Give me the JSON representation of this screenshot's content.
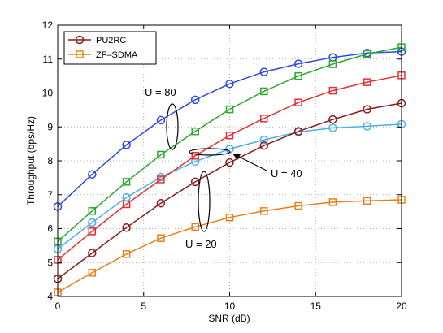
{
  "chart_data": {
    "type": "line",
    "xlabel": "SNR (dB)",
    "ylabel": "Throughput (bps/Hz)",
    "xlim": [
      0,
      20
    ],
    "ylim": [
      4,
      12
    ],
    "xticks": [
      0,
      5,
      10,
      15,
      20
    ],
    "yticks": [
      4,
      5,
      6,
      7,
      8,
      9,
      10,
      11,
      12
    ],
    "grid": "dotted",
    "legend_position": "top-left",
    "legend": [
      {
        "label": "PU2RC",
        "marker": "circle",
        "color": "#8B1A1A"
      },
      {
        "label": "ZF–SDMA",
        "marker": "square",
        "color": "#E8801A"
      }
    ],
    "x": [
      0,
      2,
      4,
      6,
      8,
      10,
      12,
      14,
      16,
      18,
      20
    ],
    "series": [
      {
        "group": "U = 80",
        "marker": "circle",
        "color": "#2B4BE0",
        "values": [
          6.65,
          7.6,
          8.47,
          9.2,
          9.8,
          10.27,
          10.62,
          10.86,
          11.05,
          11.18,
          11.22
        ]
      },
      {
        "group": "U = 80",
        "marker": "square",
        "color": "#2DA82D",
        "values": [
          5.62,
          6.52,
          7.38,
          8.18,
          8.87,
          9.52,
          10.05,
          10.5,
          10.85,
          11.15,
          11.35
        ]
      },
      {
        "group": "U = 40",
        "marker": "circle",
        "color": "#4AB0E8",
        "values": [
          5.4,
          6.18,
          6.92,
          7.52,
          7.98,
          8.35,
          8.62,
          8.85,
          8.97,
          9.02,
          9.08
        ]
      },
      {
        "group": "U = 40",
        "marker": "square",
        "color": "#E23232",
        "values": [
          5.08,
          5.92,
          6.72,
          7.45,
          8.15,
          8.75,
          9.25,
          9.72,
          10.07,
          10.32,
          10.52
        ]
      },
      {
        "group": "U = 20",
        "marker": "circle",
        "color": "#8B1A1A",
        "values": [
          4.52,
          5.28,
          6.03,
          6.75,
          7.38,
          7.95,
          8.45,
          8.87,
          9.22,
          9.52,
          9.7
        ]
      },
      {
        "group": "U = 20",
        "marker": "square",
        "color": "#E8801A",
        "values": [
          4.12,
          4.7,
          5.25,
          5.72,
          6.05,
          6.33,
          6.52,
          6.67,
          6.78,
          6.82,
          6.85
        ]
      }
    ],
    "annotations": [
      {
        "text": "U = 80"
      },
      {
        "text": "U = 40"
      },
      {
        "text": "U = 20"
      }
    ]
  }
}
